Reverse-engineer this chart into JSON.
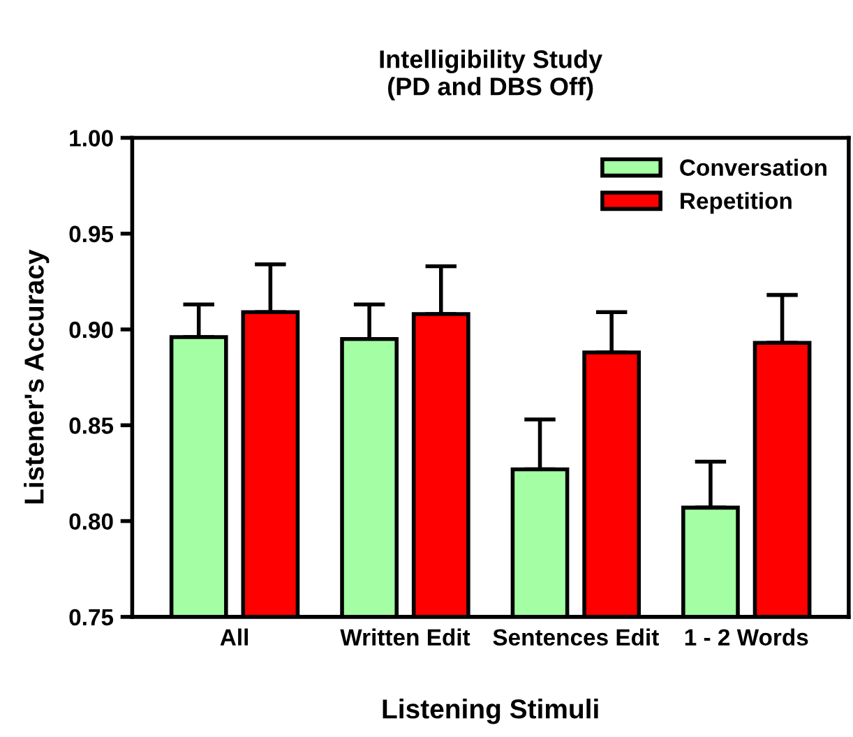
{
  "chart_data": {
    "type": "bar",
    "title": "Intelligibility Study\n(PD and DBS Off)",
    "xlabel": "Listening Stimuli",
    "ylabel": "Listener's Accuracy",
    "categories": [
      "All",
      "Written Edit",
      "Sentences Edit",
      "1 - 2 Words"
    ],
    "series": [
      {
        "name": "Conversation",
        "color": "#a4ffa4",
        "values": [
          0.896,
          0.895,
          0.827,
          0.807
        ],
        "errors": [
          [
            0.896,
            0.913
          ],
          [
            0.895,
            0.913
          ],
          [
            0.827,
            0.853
          ],
          [
            0.807,
            0.831
          ]
        ]
      },
      {
        "name": "Repetition",
        "color": "#ff0000",
        "values": [
          0.909,
          0.908,
          0.888,
          0.893
        ],
        "errors": [
          [
            0.909,
            0.934
          ],
          [
            0.908,
            0.933
          ],
          [
            0.888,
            0.909
          ],
          [
            0.893,
            0.918
          ]
        ]
      }
    ],
    "ylim": [
      0.75,
      1.0
    ],
    "yticks": [
      {
        "value": 0.75,
        "label": "0.75"
      },
      {
        "value": 0.8,
        "label": "0.80"
      },
      {
        "value": 0.85,
        "label": "0.85"
      },
      {
        "value": 0.9,
        "label": "0.90"
      },
      {
        "value": 0.95,
        "label": "0.95"
      },
      {
        "value": 1.0,
        "label": "1.00"
      }
    ],
    "legend": "top right",
    "grid": false
  }
}
